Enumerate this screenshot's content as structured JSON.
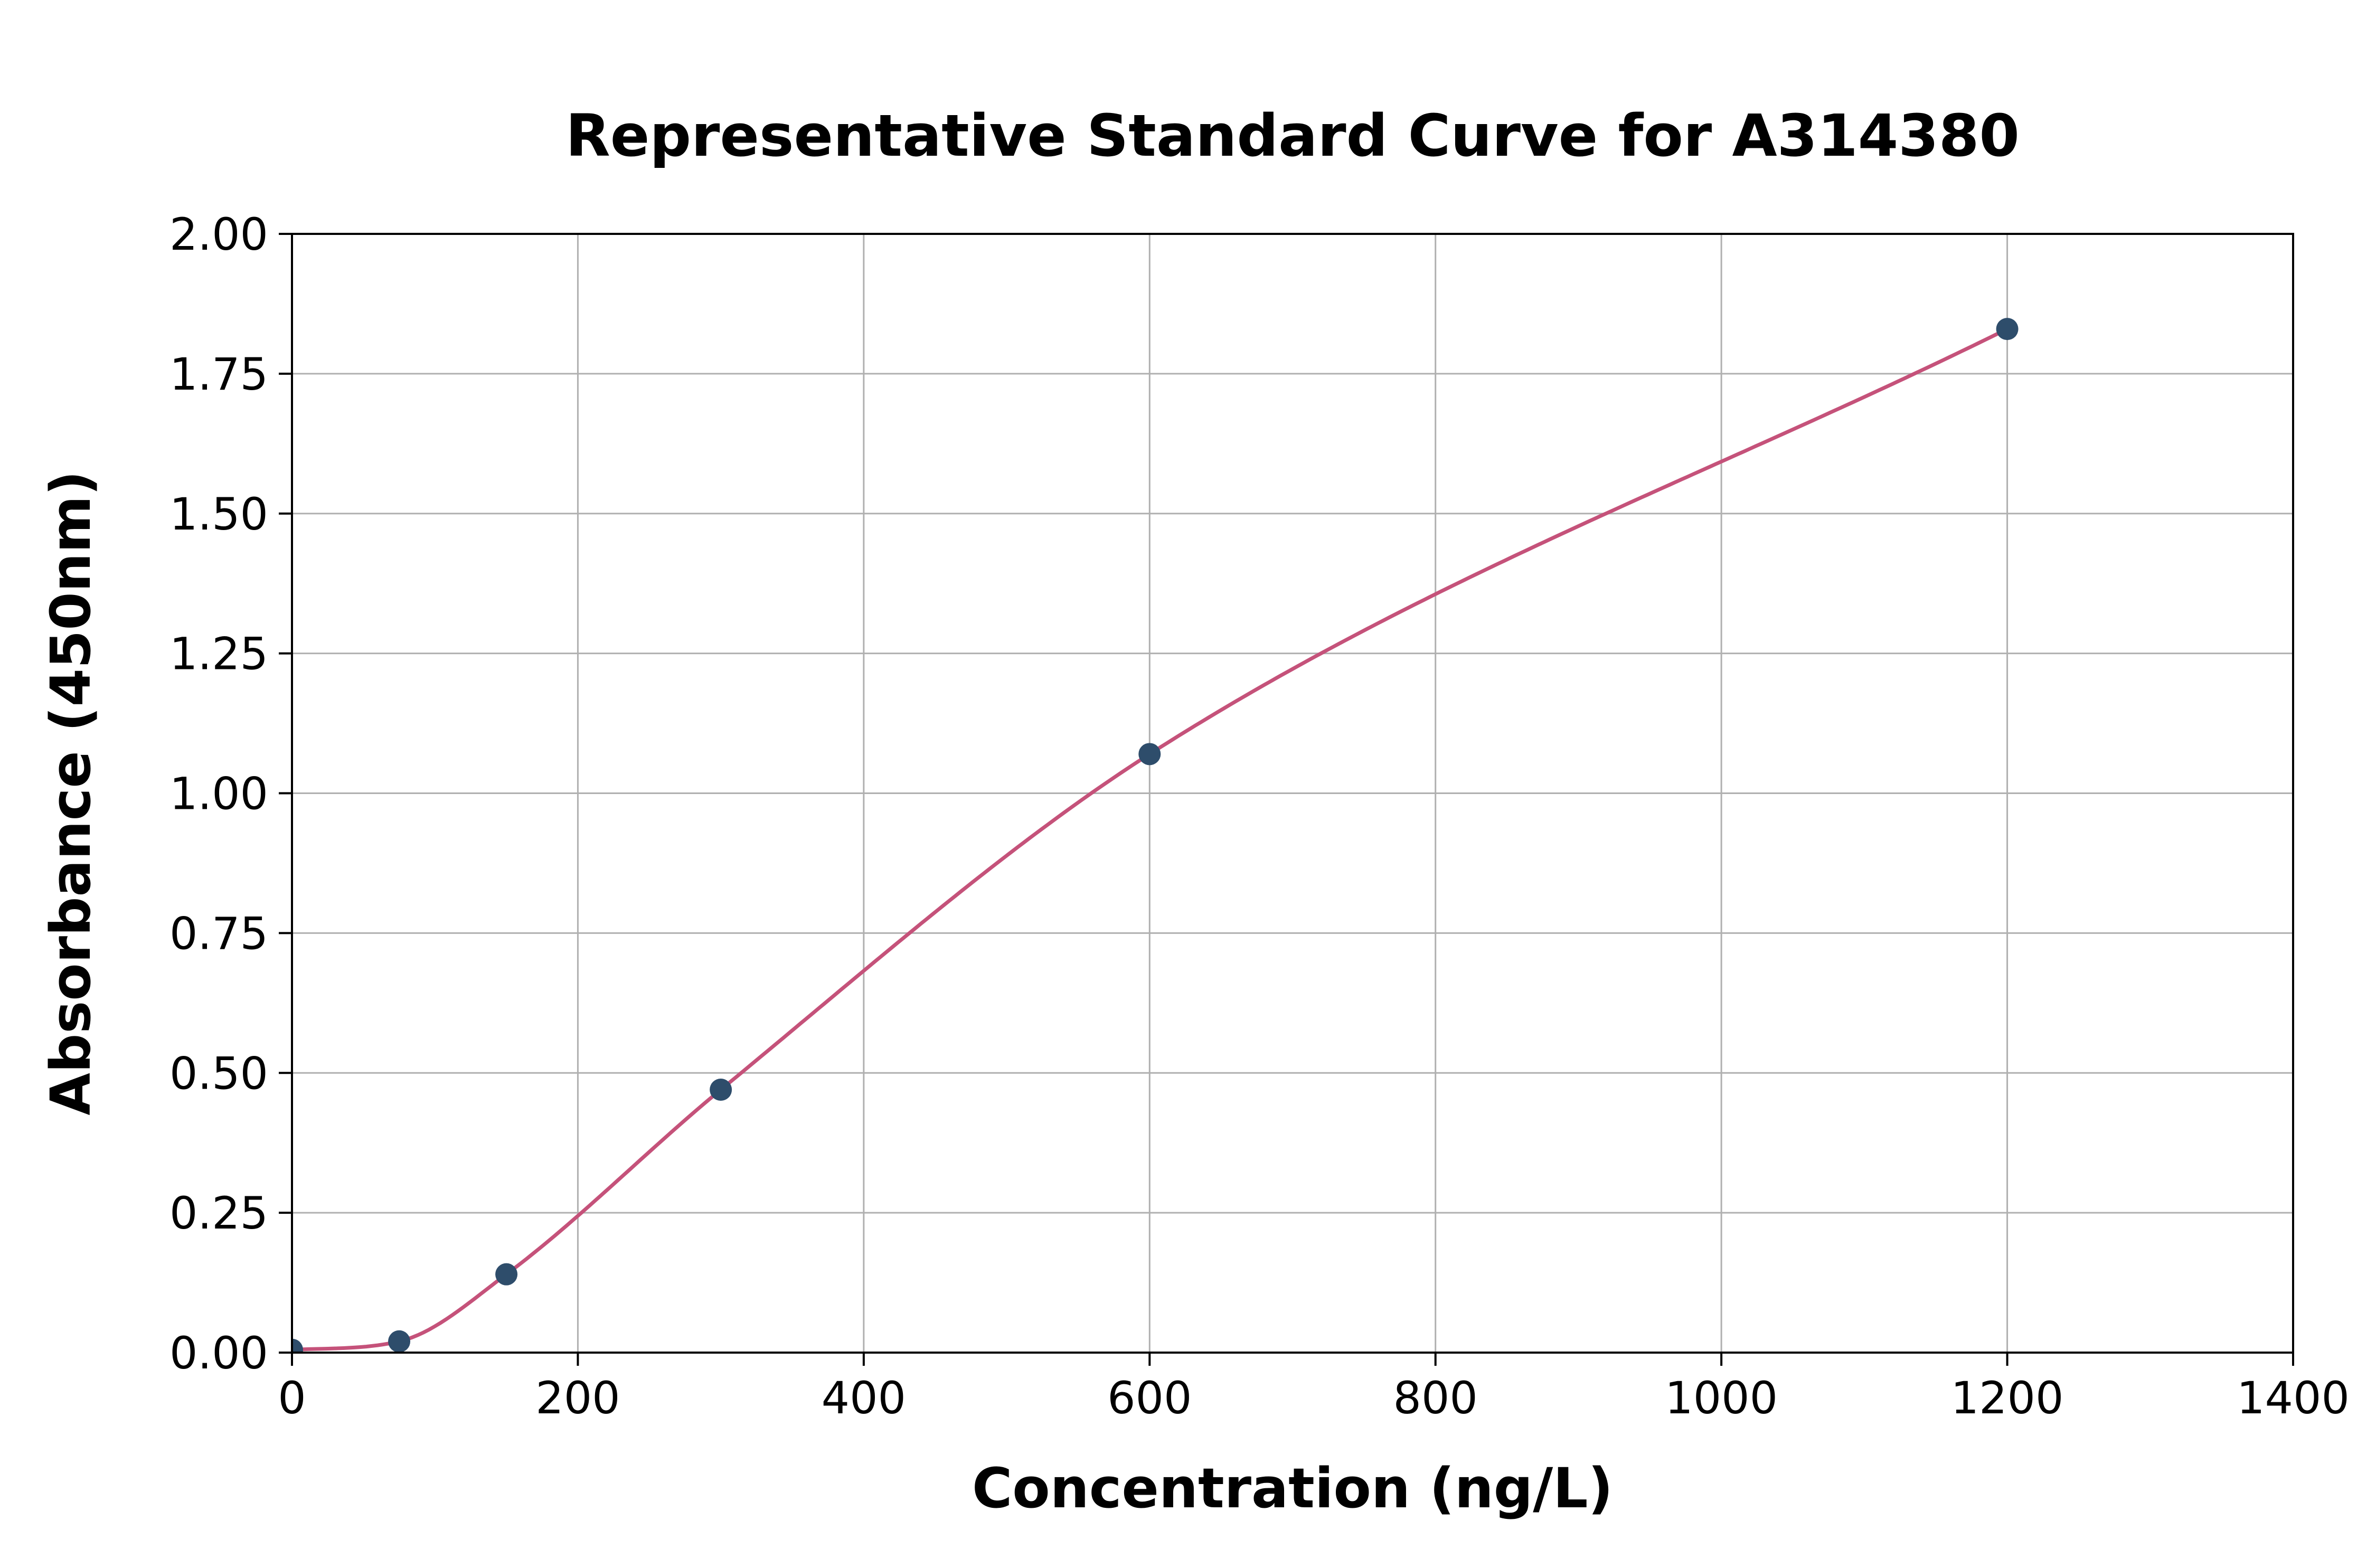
{
  "chart_data": {
    "type": "scatter",
    "title": "Representative Standard Curve for A314380",
    "xlabel": "Concentration (ng/L)",
    "ylabel": "Absorbance (450nm)",
    "xlim": [
      0,
      1400
    ],
    "ylim": [
      0,
      2.0
    ],
    "x_ticks": [
      0,
      200,
      400,
      600,
      800,
      1000,
      1200,
      1400
    ],
    "x_tick_labels": [
      "0",
      "200",
      "400",
      "600",
      "800",
      "1000",
      "1200",
      "1400"
    ],
    "y_ticks": [
      0,
      0.25,
      0.5,
      0.75,
      1.0,
      1.25,
      1.5,
      1.75,
      2.0
    ],
    "y_tick_labels": [
      "0.00",
      "0.25",
      "0.50",
      "0.75",
      "1.00",
      "1.25",
      "1.50",
      "1.75",
      "2.00"
    ],
    "grid": true,
    "legend": "none",
    "points": [
      {
        "x": 0,
        "y": 0.005
      },
      {
        "x": 75,
        "y": 0.02
      },
      {
        "x": 150,
        "y": 0.14
      },
      {
        "x": 300,
        "y": 0.47
      },
      {
        "x": 600,
        "y": 1.07
      },
      {
        "x": 1200,
        "y": 1.83
      }
    ],
    "curve": "smooth sigmoidal fit through standard points",
    "colors": {
      "curve": "#c5527a",
      "points": "#2e4d6b",
      "grid": "#b0b0b0",
      "axis": "#000000",
      "background": "#ffffff"
    }
  }
}
